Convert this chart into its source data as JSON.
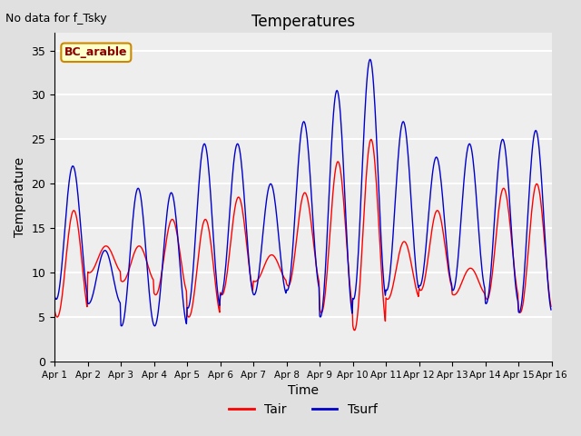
{
  "title": "Temperatures",
  "xlabel": "Time",
  "ylabel": "Temperature",
  "top_left_text": "No data for f_Tsky",
  "annotation_text": "BC_arable",
  "ylim": [
    0,
    37
  ],
  "yticks": [
    0,
    5,
    10,
    15,
    20,
    25,
    30,
    35
  ],
  "x_tick_labels": [
    "Apr 1",
    "Apr 2",
    "Apr 3",
    "Apr 4",
    "Apr 5",
    "Apr 6",
    "Apr 7",
    "Apr 8",
    "Apr 9",
    "Apr 10",
    "Apr 11",
    "Apr 12",
    "Apr 13",
    "Apr 14",
    "Apr 15",
    "Apr 16"
  ],
  "legend_entries": [
    "Tair",
    "Tsurf"
  ],
  "line_color_tair": "#ff0000",
  "line_color_tsurf": "#0000cc",
  "background_color": "#e0e0e0",
  "plot_bg_color": "#eeeeee",
  "grid_color": "#ffffff",
  "annotation_bg": "#ffffcc",
  "annotation_border": "#cc8800",
  "figsize": [
    6.4,
    4.8
  ],
  "dpi": 100,
  "n_days": 15,
  "pts_per_day": 48,
  "day_min_tair": [
    5.0,
    10.0,
    9.0,
    7.5,
    5.0,
    7.5,
    9.0,
    8.5,
    5.5,
    3.5,
    7.0,
    8.0,
    7.5,
    7.0,
    5.5
  ],
  "day_max_tair": [
    17.0,
    13.0,
    13.0,
    16.0,
    16.0,
    18.5,
    12.0,
    19.0,
    22.5,
    25.0,
    13.5,
    17.0,
    10.5,
    19.5,
    20.0
  ],
  "day_min_tsurf": [
    7.0,
    6.5,
    4.0,
    4.0,
    6.0,
    7.5,
    7.5,
    8.0,
    5.0,
    7.0,
    8.0,
    8.5,
    8.0,
    6.5,
    5.5
  ],
  "day_max_tsurf": [
    22.0,
    12.5,
    19.5,
    19.0,
    24.5,
    24.5,
    20.0,
    27.0,
    30.5,
    34.0,
    27.0,
    23.0,
    24.5,
    25.0,
    26.0
  ],
  "peak_frac_tair": [
    0.58,
    0.55,
    0.55,
    0.55,
    0.55,
    0.55,
    0.55,
    0.55,
    0.55,
    0.55,
    0.55,
    0.55,
    0.55,
    0.55,
    0.55
  ],
  "peak_frac_tsurf": [
    0.55,
    0.52,
    0.52,
    0.52,
    0.52,
    0.52,
    0.52,
    0.52,
    0.52,
    0.52,
    0.52,
    0.52,
    0.52,
    0.52,
    0.52
  ]
}
